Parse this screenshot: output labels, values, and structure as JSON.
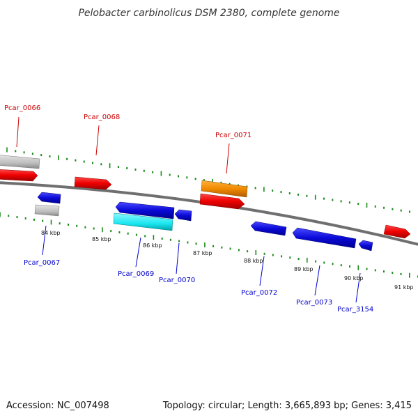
{
  "title": "Pelobacter carbinolicus DSM 2380, complete genome",
  "footer": {
    "accession": "Accession: NC_007498",
    "summary": "Topology: circular; Length: 3,665,893 bp; Genes: 3,415"
  },
  "colors": {
    "forward_label": "#cc0000",
    "reverse_label": "#0000cc",
    "tick": "#1a8a1a",
    "backbone": "#808080",
    "red": "#ee0000",
    "blue": "#0a0ad8",
    "grey": "#bdbdbd",
    "orange": "#f08a00",
    "cyan": "#19e6f0"
  },
  "scale_labels": [
    "84 kbp",
    "85 kbp",
    "86 kbp",
    "87 kbp",
    "88 kbp",
    "89 kbp",
    "90 kbp",
    "91 kbp"
  ],
  "gene_labels": {
    "forward": [
      "Pcar_0066",
      "Pcar_0068",
      "Pcar_0071"
    ],
    "reverse": [
      "Pcar_0067",
      "Pcar_0069",
      "Pcar_0070",
      "Pcar_0072",
      "Pcar_0073",
      "Pcar_3154"
    ]
  }
}
